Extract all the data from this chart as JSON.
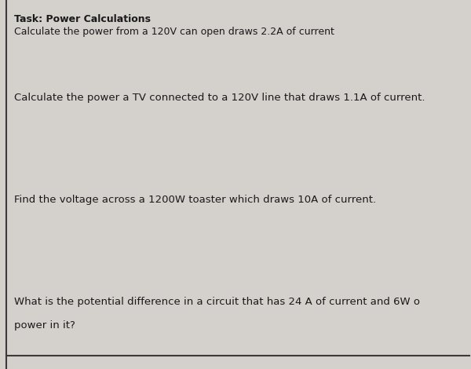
{
  "background_color": "#d4d0cc",
  "title_line1": "Task: Power Calculations",
  "title_line2": "Calculate the power from a 120V can open draws 2.2A of current",
  "q2": "Calculate the power a TV connected to a 120V line that draws 1.1A of current.",
  "q3": "Find the voltage across a 1200W toaster which draws 10A of current.",
  "q4_line1": "What is the potential difference in a circuit that has 24 A of current and 6W o",
  "q4_line2": "power in it?",
  "border_color": "#3a3a3a",
  "text_color": "#1a1a1a",
  "title_fontsize": 9.0,
  "body_fontsize": 9.5,
  "fig_width": 6.0,
  "fig_height": 4.7
}
